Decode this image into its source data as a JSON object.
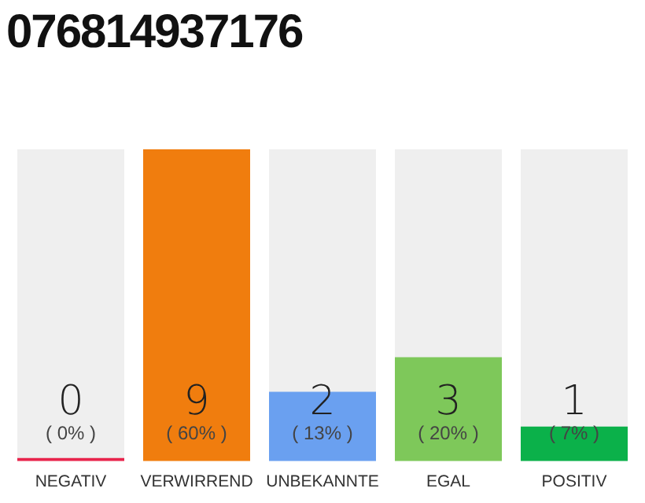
{
  "chart_data": {
    "type": "bar",
    "title": "076814937176",
    "categories": [
      "NEGATIV",
      "VERWIRREND",
      "UNBEKANNTE",
      "EGAL",
      "POSITIV"
    ],
    "values": [
      0,
      9,
      2,
      3,
      1
    ],
    "colors": [
      "#e8244c",
      "#f07d0e",
      "#6aa0f0",
      "#7ec85a",
      "#0bb14a"
    ],
    "data_labels": true,
    "annotations": [
      "( 0% )",
      "( 60% )",
      "( 13% )",
      "( 20% )",
      "( 7% )"
    ],
    "grid": false,
    "legend": false
  }
}
